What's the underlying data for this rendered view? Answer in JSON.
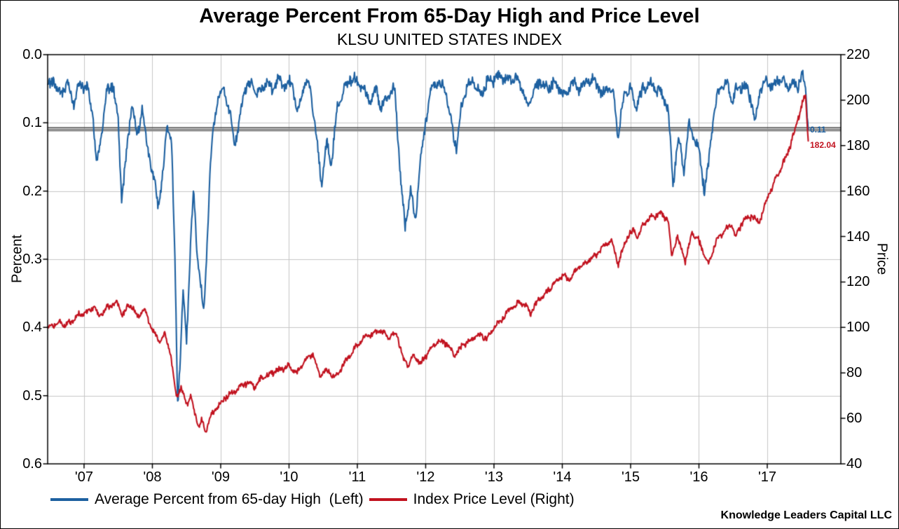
{
  "chart_data": {
    "type": "line",
    "title": "Average Percent From 65-Day High and Price Level",
    "subtitle": "KLSU UNITED STATES INDEX",
    "grid": true,
    "grid_color": "#c6c6c6",
    "legend_position": "bottom",
    "x_axis": {
      "range": [
        2006.467,
        2018.077
      ],
      "tick_years": [
        2007,
        2008,
        2009,
        2010,
        2011,
        2012,
        2013,
        2014,
        2015,
        2016,
        2017
      ],
      "tick_labels": [
        "'07",
        "'08",
        "'09",
        "'10",
        "'11",
        "'12",
        "'13",
        "'14",
        "'15",
        "'16",
        "'17"
      ]
    },
    "left_axis": {
      "label": "Percent",
      "range": [
        0,
        0.6
      ],
      "inverted": true,
      "ticks": [
        0,
        0.1,
        0.2,
        0.3,
        0.4,
        0.5,
        0.6
      ],
      "tick_labels": [
        "0.0",
        "0.1",
        "0.2",
        "0.3",
        "0.4",
        "0.5",
        "0.6"
      ]
    },
    "right_axis": {
      "label": "Price",
      "range": [
        40,
        220
      ],
      "ticks": [
        220,
        200,
        180,
        160,
        140,
        120,
        100,
        80,
        60,
        40
      ],
      "tick_labels": [
        "220",
        "200",
        "180",
        "160",
        "140",
        "120",
        "100",
        "80",
        "60",
        "40"
      ]
    },
    "reference_line": {
      "axis": "left",
      "value": 0.11,
      "color": "#8c8c8c",
      "edge_color": "#4d4d4d"
    },
    "series": [
      {
        "name": "Average Percent from 65-day High  (Left)",
        "axis": "left",
        "color": "#1d60a0",
        "last_value_label": "0.11",
        "points": [
          [
            2006.47,
            0.05
          ],
          [
            2006.55,
            0.035
          ],
          [
            2006.65,
            0.06
          ],
          [
            2006.75,
            0.04
          ],
          [
            2006.85,
            0.07
          ],
          [
            2006.95,
            0.04
          ],
          [
            2007.05,
            0.05
          ],
          [
            2007.12,
            0.08
          ],
          [
            2007.18,
            0.16
          ],
          [
            2007.25,
            0.12
          ],
          [
            2007.32,
            0.06
          ],
          [
            2007.42,
            0.04
          ],
          [
            2007.5,
            0.1
          ],
          [
            2007.55,
            0.21
          ],
          [
            2007.62,
            0.15
          ],
          [
            2007.7,
            0.07
          ],
          [
            2007.78,
            0.12
          ],
          [
            2007.85,
            0.08
          ],
          [
            2007.92,
            0.13
          ],
          [
            2008.0,
            0.17
          ],
          [
            2008.08,
            0.22
          ],
          [
            2008.15,
            0.18
          ],
          [
            2008.22,
            0.1
          ],
          [
            2008.28,
            0.13
          ],
          [
            2008.33,
            0.3
          ],
          [
            2008.37,
            0.51
          ],
          [
            2008.41,
            0.44
          ],
          [
            2008.45,
            0.35
          ],
          [
            2008.5,
            0.42
          ],
          [
            2008.55,
            0.3
          ],
          [
            2008.6,
            0.2
          ],
          [
            2008.65,
            0.28
          ],
          [
            2008.7,
            0.33
          ],
          [
            2008.75,
            0.38
          ],
          [
            2008.8,
            0.28
          ],
          [
            2008.85,
            0.16
          ],
          [
            2008.9,
            0.1
          ],
          [
            2008.97,
            0.06
          ],
          [
            2009.05,
            0.05
          ],
          [
            2009.12,
            0.08
          ],
          [
            2009.2,
            0.13
          ],
          [
            2009.28,
            0.1
          ],
          [
            2009.35,
            0.05
          ],
          [
            2009.45,
            0.04
          ],
          [
            2009.55,
            0.06
          ],
          [
            2009.65,
            0.04
          ],
          [
            2009.75,
            0.05
          ],
          [
            2009.85,
            0.035
          ],
          [
            2009.95,
            0.045
          ],
          [
            2010.05,
            0.04
          ],
          [
            2010.12,
            0.09
          ],
          [
            2010.2,
            0.05
          ],
          [
            2010.3,
            0.04
          ],
          [
            2010.4,
            0.12
          ],
          [
            2010.48,
            0.19
          ],
          [
            2010.55,
            0.13
          ],
          [
            2010.62,
            0.16
          ],
          [
            2010.7,
            0.08
          ],
          [
            2010.8,
            0.05
          ],
          [
            2010.9,
            0.035
          ],
          [
            2011.0,
            0.04
          ],
          [
            2011.1,
            0.05
          ],
          [
            2011.18,
            0.07
          ],
          [
            2011.28,
            0.05
          ],
          [
            2011.35,
            0.08
          ],
          [
            2011.45,
            0.06
          ],
          [
            2011.55,
            0.05
          ],
          [
            2011.63,
            0.18
          ],
          [
            2011.7,
            0.25
          ],
          [
            2011.78,
            0.2
          ],
          [
            2011.85,
            0.24
          ],
          [
            2011.92,
            0.16
          ],
          [
            2012.0,
            0.1
          ],
          [
            2012.08,
            0.05
          ],
          [
            2012.18,
            0.04
          ],
          [
            2012.28,
            0.05
          ],
          [
            2012.38,
            0.1
          ],
          [
            2012.45,
            0.14
          ],
          [
            2012.52,
            0.08
          ],
          [
            2012.6,
            0.05
          ],
          [
            2012.7,
            0.04
          ],
          [
            2012.8,
            0.06
          ],
          [
            2012.9,
            0.04
          ],
          [
            2013.0,
            0.035
          ],
          [
            2013.1,
            0.03
          ],
          [
            2013.2,
            0.04
          ],
          [
            2013.3,
            0.035
          ],
          [
            2013.42,
            0.05
          ],
          [
            2013.5,
            0.08
          ],
          [
            2013.58,
            0.05
          ],
          [
            2013.68,
            0.04
          ],
          [
            2013.78,
            0.05
          ],
          [
            2013.88,
            0.04
          ],
          [
            2013.95,
            0.05
          ],
          [
            2014.05,
            0.06
          ],
          [
            2014.12,
            0.04
          ],
          [
            2014.22,
            0.05
          ],
          [
            2014.3,
            0.045
          ],
          [
            2014.4,
            0.035
          ],
          [
            2014.5,
            0.04
          ],
          [
            2014.58,
            0.06
          ],
          [
            2014.65,
            0.045
          ],
          [
            2014.75,
            0.06
          ],
          [
            2014.82,
            0.12
          ],
          [
            2014.9,
            0.06
          ],
          [
            2015.0,
            0.05
          ],
          [
            2015.08,
            0.08
          ],
          [
            2015.18,
            0.05
          ],
          [
            2015.28,
            0.04
          ],
          [
            2015.38,
            0.05
          ],
          [
            2015.48,
            0.06
          ],
          [
            2015.55,
            0.08
          ],
          [
            2015.62,
            0.19
          ],
          [
            2015.7,
            0.12
          ],
          [
            2015.78,
            0.17
          ],
          [
            2015.85,
            0.1
          ],
          [
            2015.92,
            0.12
          ],
          [
            2016.0,
            0.14
          ],
          [
            2016.08,
            0.2
          ],
          [
            2016.14,
            0.16
          ],
          [
            2016.22,
            0.08
          ],
          [
            2016.3,
            0.05
          ],
          [
            2016.4,
            0.04
          ],
          [
            2016.48,
            0.07
          ],
          [
            2016.55,
            0.05
          ],
          [
            2016.65,
            0.045
          ],
          [
            2016.75,
            0.06
          ],
          [
            2016.82,
            0.1
          ],
          [
            2016.9,
            0.05
          ],
          [
            2017.0,
            0.04
          ],
          [
            2017.1,
            0.045
          ],
          [
            2017.2,
            0.035
          ],
          [
            2017.3,
            0.05
          ],
          [
            2017.38,
            0.04
          ],
          [
            2017.45,
            0.045
          ],
          [
            2017.52,
            0.03
          ],
          [
            2017.56,
            0.05
          ],
          [
            2017.6,
            0.11
          ]
        ]
      },
      {
        "name": "Index Price Level (Right)",
        "axis": "right",
        "color": "#c1121f",
        "last_value_label": "182.04",
        "points": [
          [
            2006.47,
            100
          ],
          [
            2006.6,
            102
          ],
          [
            2006.75,
            101
          ],
          [
            2006.9,
            105
          ],
          [
            2007.05,
            107
          ],
          [
            2007.15,
            109
          ],
          [
            2007.22,
            105
          ],
          [
            2007.35,
            109
          ],
          [
            2007.48,
            111
          ],
          [
            2007.56,
            106
          ],
          [
            2007.68,
            110
          ],
          [
            2007.78,
            105
          ],
          [
            2007.88,
            108
          ],
          [
            2008.0,
            99
          ],
          [
            2008.1,
            94
          ],
          [
            2008.18,
            97
          ],
          [
            2008.27,
            88
          ],
          [
            2008.35,
            69
          ],
          [
            2008.42,
            74
          ],
          [
            2008.5,
            66
          ],
          [
            2008.56,
            70
          ],
          [
            2008.62,
            62
          ],
          [
            2008.68,
            56
          ],
          [
            2008.72,
            59
          ],
          [
            2008.78,
            54
          ],
          [
            2008.84,
            60
          ],
          [
            2008.92,
            64
          ],
          [
            2009.0,
            67
          ],
          [
            2009.1,
            70
          ],
          [
            2009.25,
            73
          ],
          [
            2009.4,
            76
          ],
          [
            2009.5,
            74
          ],
          [
            2009.6,
            78
          ],
          [
            2009.75,
            80
          ],
          [
            2009.9,
            82
          ],
          [
            2010.0,
            83
          ],
          [
            2010.12,
            80
          ],
          [
            2010.25,
            86
          ],
          [
            2010.35,
            88
          ],
          [
            2010.45,
            79
          ],
          [
            2010.55,
            81
          ],
          [
            2010.68,
            78
          ],
          [
            2010.8,
            84
          ],
          [
            2010.92,
            89
          ],
          [
            2011.05,
            94
          ],
          [
            2011.2,
            97
          ],
          [
            2011.32,
            99
          ],
          [
            2011.45,
            96
          ],
          [
            2011.58,
            97
          ],
          [
            2011.66,
            87
          ],
          [
            2011.75,
            83
          ],
          [
            2011.83,
            88
          ],
          [
            2011.93,
            84
          ],
          [
            2012.05,
            90
          ],
          [
            2012.18,
            94
          ],
          [
            2012.3,
            93
          ],
          [
            2012.42,
            88
          ],
          [
            2012.55,
            92
          ],
          [
            2012.68,
            95
          ],
          [
            2012.8,
            97
          ],
          [
            2012.9,
            95
          ],
          [
            2013.0,
            100
          ],
          [
            2013.12,
            104
          ],
          [
            2013.25,
            108
          ],
          [
            2013.38,
            111
          ],
          [
            2013.46,
            110
          ],
          [
            2013.53,
            106
          ],
          [
            2013.65,
            112
          ],
          [
            2013.78,
            116
          ],
          [
            2013.9,
            120
          ],
          [
            2014.0,
            123
          ],
          [
            2014.1,
            121
          ],
          [
            2014.22,
            126
          ],
          [
            2014.35,
            129
          ],
          [
            2014.5,
            132
          ],
          [
            2014.62,
            136
          ],
          [
            2014.72,
            138
          ],
          [
            2014.82,
            128
          ],
          [
            2014.95,
            140
          ],
          [
            2015.05,
            143
          ],
          [
            2015.1,
            139
          ],
          [
            2015.2,
            146
          ],
          [
            2015.32,
            149
          ],
          [
            2015.45,
            150
          ],
          [
            2015.55,
            147
          ],
          [
            2015.6,
            131
          ],
          [
            2015.68,
            140
          ],
          [
            2015.75,
            134
          ],
          [
            2015.8,
            129
          ],
          [
            2015.9,
            142
          ],
          [
            2016.0,
            138
          ],
          [
            2016.08,
            132
          ],
          [
            2016.14,
            128
          ],
          [
            2016.25,
            138
          ],
          [
            2016.38,
            143
          ],
          [
            2016.48,
            145
          ],
          [
            2016.54,
            140
          ],
          [
            2016.65,
            147
          ],
          [
            2016.78,
            149
          ],
          [
            2016.88,
            146
          ],
          [
            2016.98,
            155
          ],
          [
            2017.1,
            164
          ],
          [
            2017.2,
            170
          ],
          [
            2017.3,
            177
          ],
          [
            2017.4,
            186
          ],
          [
            2017.47,
            194
          ],
          [
            2017.53,
            200
          ],
          [
            2017.56,
            202
          ],
          [
            2017.58,
            193
          ],
          [
            2017.6,
            182.04
          ]
        ]
      }
    ]
  },
  "footer": {
    "credit": "Knowledge Leaders Capital LLC"
  }
}
